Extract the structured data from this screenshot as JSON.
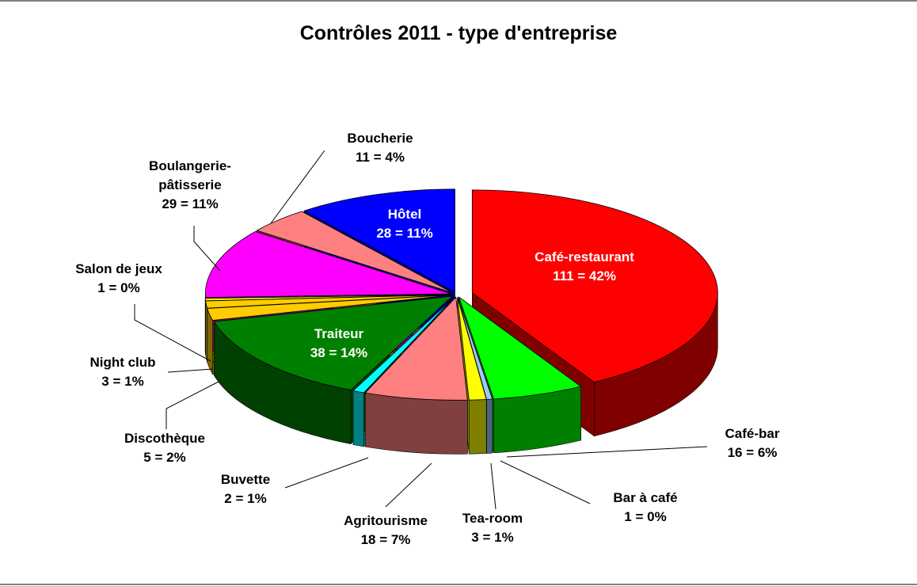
{
  "chart_data": {
    "type": "pie3d",
    "title": "Contrôles 2011 - type d'entreprise",
    "categories": [
      "Café-restaurant",
      "Café-bar",
      "Bar à café",
      "Tea-room",
      "Agritourisme",
      "Buvette",
      "Traiteur",
      "Discothèque",
      "Night club",
      "Salon de jeux",
      "Boulangerie-pâtisserie",
      "Boucherie",
      "Hôtel"
    ],
    "values": [
      111,
      16,
      1,
      3,
      18,
      2,
      38,
      5,
      3,
      1,
      29,
      11,
      28
    ],
    "value_labels": [
      "111 = 42%",
      "16 = 6%",
      "1 = 0%",
      "3 = 1%",
      "18 = 7%",
      "2 = 1%",
      "38 = 14%",
      "5 = 2%",
      "3 = 1%",
      "1 = 0%",
      "29 = 11%",
      "11 = 4%",
      "28 = 11%"
    ],
    "colors": [
      "#ff0000",
      "#00ff00",
      "#99ccff",
      "#ffff00",
      "#ff8080",
      "#00ffff",
      "#008000",
      "#ffcc00",
      "#ffcc00",
      "#ffff00",
      "#ff00ff",
      "#ff8080",
      "#0000ff"
    ]
  }
}
